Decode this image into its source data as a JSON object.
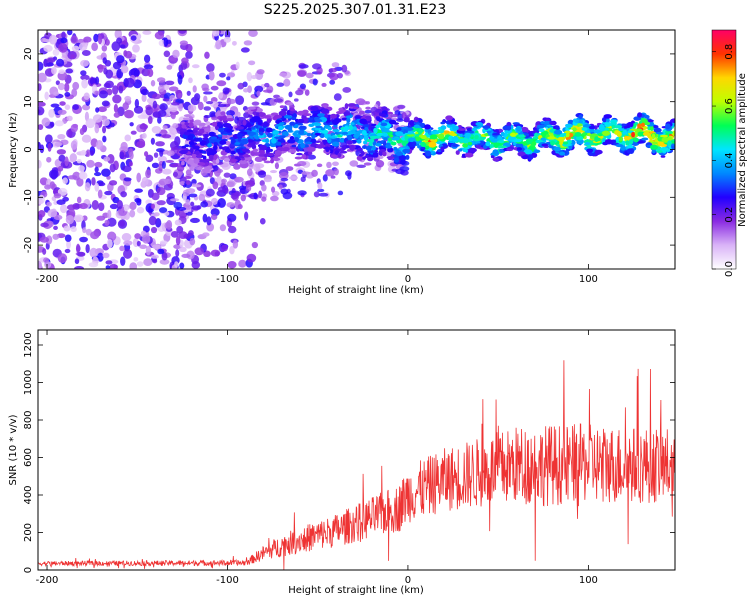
{
  "title": "S225.2025.307.01.31.E23",
  "chart_data": [
    {
      "type": "heatmap",
      "xlabel": "Height of straight line (km)",
      "ylabel": "Frequency (Hz)",
      "xlim": [
        -205,
        148
      ],
      "ylim": [
        -25,
        25
      ],
      "xticks": [
        -200,
        -100,
        0,
        100
      ],
      "yticks": [
        -20,
        -10,
        0,
        10,
        20
      ],
      "ridge": {
        "description": "dominant spectral ridge (frequency vs height)",
        "points": [
          {
            "x": -120,
            "y": 1,
            "amp": 0.35
          },
          {
            "x": -100,
            "y": 2,
            "amp": 0.4
          },
          {
            "x": -80,
            "y": 3,
            "amp": 0.45
          },
          {
            "x": -60,
            "y": 4,
            "amp": 0.5
          },
          {
            "x": -40,
            "y": 4,
            "amp": 0.5
          },
          {
            "x": -20,
            "y": 3,
            "amp": 0.55
          },
          {
            "x": 0,
            "y": 2,
            "amp": 0.6
          },
          {
            "x": 10,
            "y": 2.5,
            "amp": 0.85
          },
          {
            "x": 30,
            "y": 2.5,
            "amp": 0.65
          },
          {
            "x": 50,
            "y": 2,
            "amp": 0.7
          },
          {
            "x": 70,
            "y": 2,
            "amp": 0.65
          },
          {
            "x": 90,
            "y": 3,
            "amp": 0.85
          },
          {
            "x": 110,
            "y": 3,
            "amp": 0.7
          },
          {
            "x": 130,
            "y": 3.5,
            "amp": 0.9
          },
          {
            "x": 145,
            "y": 2,
            "amp": 0.85
          }
        ]
      },
      "colorbar": {
        "label": "Normalized spectral amplitude",
        "range": [
          0,
          0.88
        ],
        "ticks": [
          "0.0",
          "0.2",
          "0.4",
          "0.6",
          "0.8"
        ],
        "colors": [
          "#ffffff",
          "#d9b3f7",
          "#8a2be2",
          "#2200ff",
          "#0088ff",
          "#00e5ff",
          "#00ff55",
          "#bfff00",
          "#ffd700",
          "#ff3300",
          "#ff0066"
        ]
      }
    },
    {
      "type": "line",
      "xlabel": "Height of straight line (km)",
      "ylabel": "SNR (10 * v/v)",
      "xlim": [
        -205,
        148
      ],
      "ylim": [
        0,
        1280
      ],
      "xticks": [
        -200,
        -100,
        0,
        100
      ],
      "yticks": [
        0,
        200,
        400,
        600,
        800,
        1000,
        1200
      ],
      "line_color": "#ee3333",
      "envelope": {
        "x": [
          -205,
          -90,
          -80,
          -70,
          -60,
          -40,
          -20,
          -5,
          0,
          20,
          40,
          60,
          80,
          100,
          120,
          148
        ],
        "mean": [
          35,
          38,
          90,
          130,
          160,
          210,
          280,
          330,
          400,
          480,
          520,
          560,
          560,
          570,
          560,
          560
        ],
        "spread": [
          12,
          15,
          40,
          60,
          70,
          90,
          110,
          130,
          150,
          170,
          190,
          210,
          220,
          210,
          210,
          200
        ]
      },
      "sample_count": 1400
    }
  ]
}
